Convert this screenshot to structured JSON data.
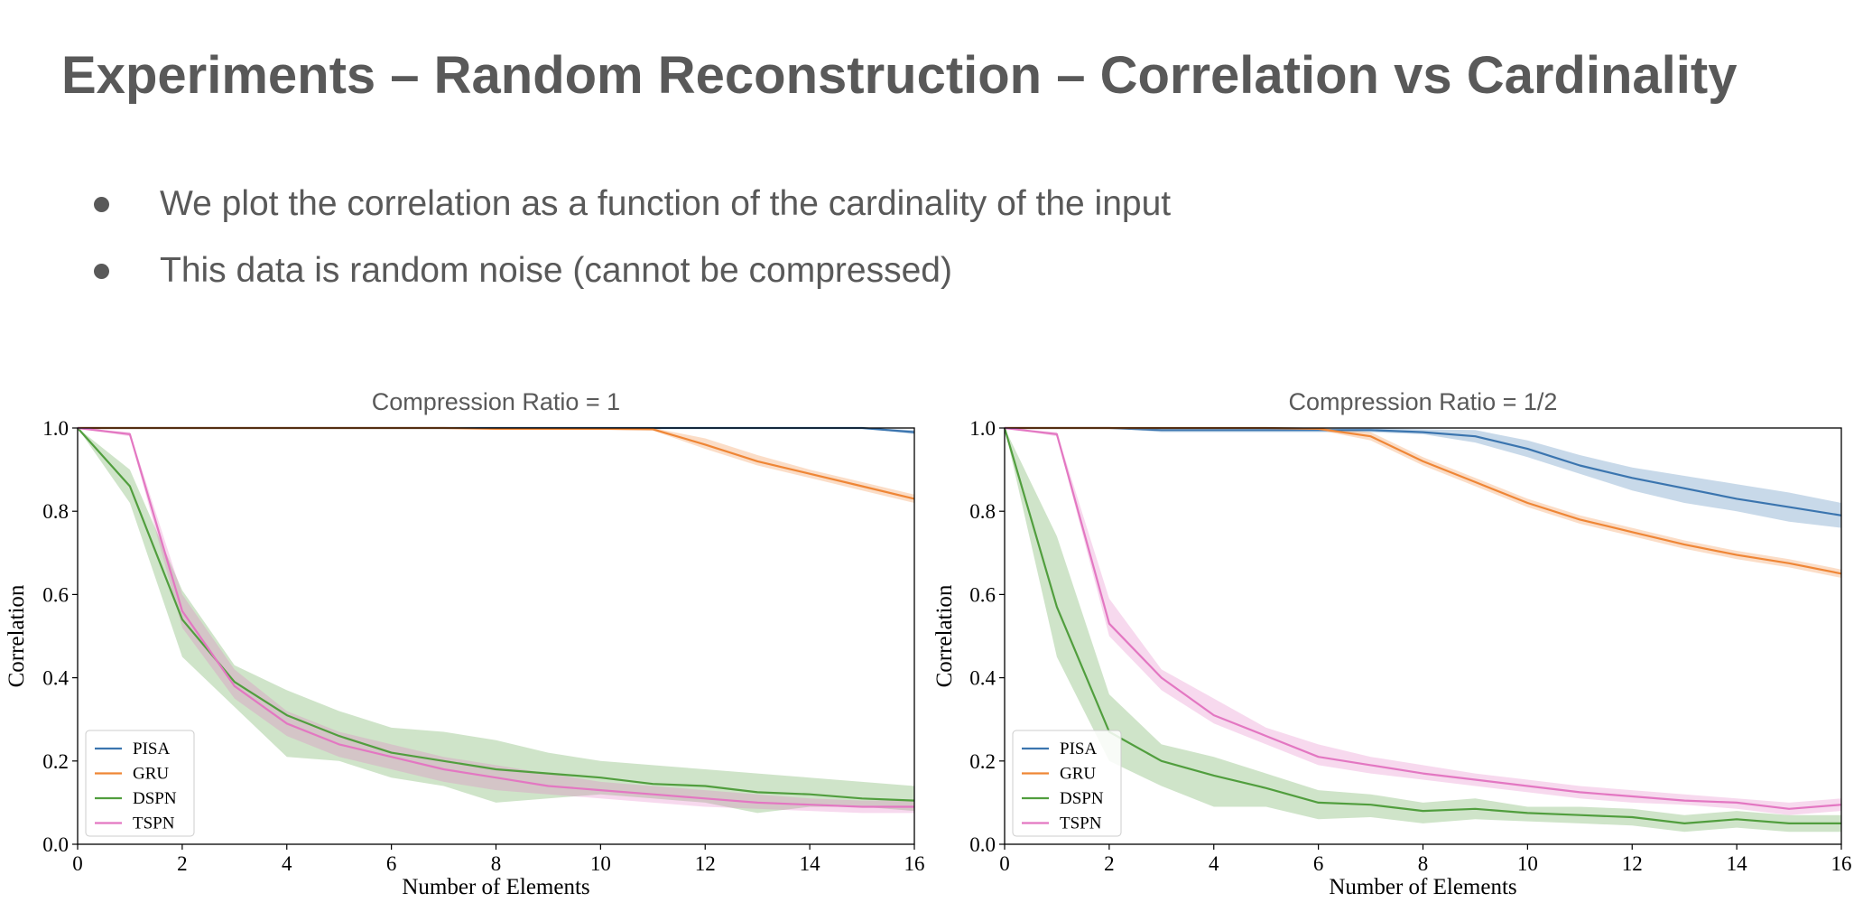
{
  "slide": {
    "title": "Experiments – Random Reconstruction – Correlation vs Cardinality",
    "bullets": [
      "We plot the correlation as a function of the cardinality of the input",
      "This data is random noise (cannot be compressed)"
    ]
  },
  "colors": {
    "PISA": "#3b75af",
    "GRU": "#ef8636",
    "DSPN": "#519e3e",
    "TSPN": "#e377c2"
  },
  "chart_data": [
    {
      "type": "line",
      "title": "Compression Ratio = 1",
      "xlabel": "Number of Elements",
      "ylabel": "Correlation",
      "xlim": [
        0,
        16
      ],
      "ylim": [
        0,
        1.0
      ],
      "xticks": [
        "0",
        "2",
        "4",
        "6",
        "8",
        "10",
        "12",
        "14",
        "16"
      ],
      "yticks": [
        "0.0",
        "0.2",
        "0.4",
        "0.6",
        "0.8",
        "1.0"
      ],
      "legend_position": "lower-left",
      "legend": [
        "PISA",
        "GRU",
        "DSPN",
        "TSPN"
      ],
      "x": [
        0,
        1,
        2,
        3,
        4,
        5,
        6,
        7,
        8,
        9,
        10,
        11,
        12,
        13,
        14,
        15,
        16
      ],
      "series": [
        {
          "name": "PISA",
          "values": [
            1.0,
            1.0,
            1.0,
            1.0,
            1.0,
            1.0,
            1.0,
            1.0,
            1.0,
            1.0,
            1.0,
            1.0,
            1.0,
            1.0,
            1.0,
            1.0,
            0.99
          ],
          "lower": [
            1.0,
            1.0,
            1.0,
            1.0,
            1.0,
            1.0,
            1.0,
            1.0,
            1.0,
            1.0,
            1.0,
            1.0,
            1.0,
            1.0,
            1.0,
            1.0,
            0.985
          ],
          "upper": [
            1.0,
            1.0,
            1.0,
            1.0,
            1.0,
            1.0,
            1.0,
            1.0,
            1.0,
            1.0,
            1.0,
            1.0,
            1.0,
            1.0,
            1.0,
            1.0,
            0.995
          ]
        },
        {
          "name": "GRU",
          "values": [
            1.0,
            1.0,
            1.0,
            1.0,
            1.0,
            1.0,
            1.0,
            1.0,
            0.998,
            0.998,
            0.998,
            0.997,
            0.96,
            0.92,
            0.89,
            0.86,
            0.83
          ],
          "lower": [
            1.0,
            1.0,
            1.0,
            1.0,
            1.0,
            1.0,
            1.0,
            1.0,
            0.996,
            0.996,
            0.996,
            0.994,
            0.95,
            0.91,
            0.88,
            0.85,
            0.82
          ],
          "upper": [
            1.0,
            1.0,
            1.0,
            1.0,
            1.0,
            1.0,
            1.0,
            1.0,
            1.0,
            1.0,
            1.0,
            1.0,
            0.975,
            0.935,
            0.9,
            0.87,
            0.84
          ]
        },
        {
          "name": "DSPN",
          "values": [
            1.0,
            0.86,
            0.54,
            0.39,
            0.31,
            0.26,
            0.22,
            0.2,
            0.18,
            0.17,
            0.16,
            0.145,
            0.14,
            0.125,
            0.12,
            0.11,
            0.105
          ],
          "lower": [
            1.0,
            0.82,
            0.45,
            0.33,
            0.21,
            0.2,
            0.16,
            0.14,
            0.1,
            0.11,
            0.12,
            0.11,
            0.1,
            0.075,
            0.09,
            0.09,
            0.08
          ],
          "upper": [
            1.0,
            0.9,
            0.61,
            0.43,
            0.37,
            0.32,
            0.28,
            0.27,
            0.25,
            0.22,
            0.2,
            0.19,
            0.18,
            0.17,
            0.16,
            0.15,
            0.14
          ]
        },
        {
          "name": "TSPN",
          "values": [
            1.0,
            0.985,
            0.56,
            0.38,
            0.29,
            0.24,
            0.21,
            0.18,
            0.16,
            0.14,
            0.13,
            0.12,
            0.11,
            0.1,
            0.095,
            0.09,
            0.09
          ],
          "lower": [
            1.0,
            0.98,
            0.52,
            0.35,
            0.26,
            0.21,
            0.18,
            0.15,
            0.13,
            0.12,
            0.11,
            0.1,
            0.09,
            0.085,
            0.08,
            0.075,
            0.075
          ],
          "upper": [
            1.0,
            0.99,
            0.6,
            0.42,
            0.32,
            0.27,
            0.24,
            0.21,
            0.19,
            0.17,
            0.15,
            0.14,
            0.13,
            0.12,
            0.11,
            0.105,
            0.105
          ]
        }
      ]
    },
    {
      "type": "line",
      "title": "Compression Ratio = 1/2",
      "xlabel": "Number of Elements",
      "ylabel": "Correlation",
      "xlim": [
        0,
        16
      ],
      "ylim": [
        0,
        1.0
      ],
      "xticks": [
        "0",
        "2",
        "4",
        "6",
        "8",
        "10",
        "12",
        "14",
        "16"
      ],
      "yticks": [
        "0.0",
        "0.2",
        "0.4",
        "0.6",
        "0.8",
        "1.0"
      ],
      "legend_position": "lower-left",
      "legend": [
        "PISA",
        "GRU",
        "DSPN",
        "TSPN"
      ],
      "x": [
        0,
        1,
        2,
        3,
        4,
        5,
        6,
        7,
        8,
        9,
        10,
        11,
        12,
        13,
        14,
        15,
        16
      ],
      "series": [
        {
          "name": "PISA",
          "values": [
            1.0,
            1.0,
            1.0,
            0.995,
            0.995,
            0.995,
            0.995,
            0.995,
            0.99,
            0.98,
            0.95,
            0.91,
            0.88,
            0.855,
            0.83,
            0.81,
            0.79
          ],
          "lower": [
            1.0,
            1.0,
            1.0,
            0.99,
            0.99,
            0.99,
            0.99,
            0.99,
            0.985,
            0.965,
            0.93,
            0.89,
            0.85,
            0.82,
            0.8,
            0.775,
            0.76
          ],
          "upper": [
            1.0,
            1.0,
            1.0,
            1.0,
            1.0,
            1.0,
            1.0,
            1.0,
            0.997,
            0.995,
            0.97,
            0.935,
            0.905,
            0.885,
            0.865,
            0.845,
            0.82
          ]
        },
        {
          "name": "GRU",
          "values": [
            1.0,
            1.0,
            1.0,
            1.0,
            1.0,
            1.0,
            0.998,
            0.98,
            0.92,
            0.87,
            0.82,
            0.78,
            0.75,
            0.72,
            0.695,
            0.675,
            0.65
          ],
          "lower": [
            1.0,
            1.0,
            1.0,
            1.0,
            1.0,
            1.0,
            0.995,
            0.97,
            0.91,
            0.86,
            0.81,
            0.77,
            0.74,
            0.71,
            0.685,
            0.665,
            0.64
          ],
          "upper": [
            1.0,
            1.0,
            1.0,
            1.0,
            1.0,
            1.0,
            1.0,
            0.99,
            0.93,
            0.88,
            0.83,
            0.79,
            0.76,
            0.73,
            0.705,
            0.685,
            0.66
          ]
        },
        {
          "name": "DSPN",
          "values": [
            1.0,
            0.57,
            0.27,
            0.2,
            0.165,
            0.135,
            0.1,
            0.095,
            0.08,
            0.085,
            0.075,
            0.07,
            0.065,
            0.05,
            0.06,
            0.05,
            0.05
          ],
          "lower": [
            1.0,
            0.45,
            0.2,
            0.14,
            0.09,
            0.09,
            0.06,
            0.065,
            0.05,
            0.06,
            0.055,
            0.05,
            0.045,
            0.03,
            0.04,
            0.03,
            0.03
          ],
          "upper": [
            1.0,
            0.74,
            0.36,
            0.24,
            0.21,
            0.17,
            0.13,
            0.12,
            0.1,
            0.11,
            0.09,
            0.09,
            0.085,
            0.07,
            0.08,
            0.07,
            0.07
          ]
        },
        {
          "name": "TSPN",
          "values": [
            1.0,
            0.985,
            0.53,
            0.4,
            0.31,
            0.26,
            0.21,
            0.19,
            0.17,
            0.155,
            0.14,
            0.125,
            0.115,
            0.105,
            0.1,
            0.085,
            0.095
          ],
          "lower": [
            1.0,
            0.98,
            0.5,
            0.37,
            0.29,
            0.24,
            0.19,
            0.17,
            0.155,
            0.14,
            0.125,
            0.11,
            0.1,
            0.095,
            0.085,
            0.07,
            0.08
          ],
          "upper": [
            1.0,
            0.99,
            0.59,
            0.42,
            0.35,
            0.28,
            0.24,
            0.21,
            0.19,
            0.17,
            0.155,
            0.14,
            0.13,
            0.12,
            0.11,
            0.1,
            0.11
          ]
        }
      ]
    }
  ]
}
